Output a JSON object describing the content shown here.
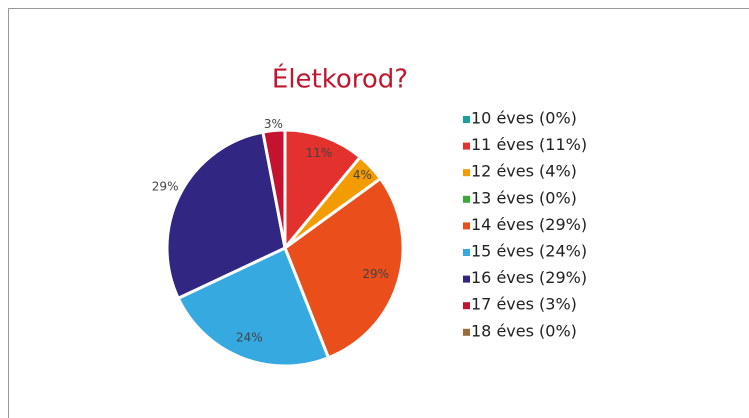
{
  "chart_data": {
    "type": "pie",
    "title": "Életkorod?",
    "categories": [
      "10 éves (0%)",
      "11 éves (11%)",
      "12 éves (4%)",
      "13 éves (0%)",
      "14 éves (29%)",
      "15 éves (24%)",
      "16 éves (29%)",
      "17 éves (3%)",
      "18 éves (0%)"
    ],
    "values": [
      0,
      11,
      4,
      0,
      29,
      24,
      29,
      3,
      0
    ],
    "value_labels": [
      null,
      "11%",
      "4%",
      null,
      "29%",
      "24%",
      "29%",
      "3%",
      null
    ],
    "colors": [
      "#1a9e9e",
      "#e3312d",
      "#f29c00",
      "#3aa935",
      "#e94e1b",
      "#35a9e0",
      "#312783",
      "#c4122f",
      "#9c6b3a"
    ],
    "legend": "right"
  }
}
